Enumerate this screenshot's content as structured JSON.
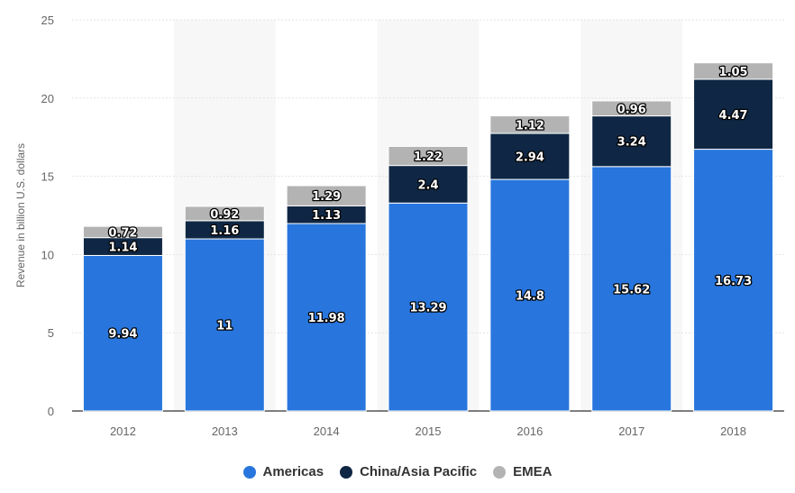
{
  "chart_data": {
    "type": "bar",
    "stacked": true,
    "categories": [
      "2012",
      "2013",
      "2014",
      "2015",
      "2016",
      "2017",
      "2018"
    ],
    "series": [
      {
        "name": "Americas",
        "color": "#2876DD",
        "values": [
          9.94,
          11,
          11.98,
          13.29,
          14.8,
          15.62,
          16.73
        ]
      },
      {
        "name": "China/Asia Pacific",
        "color": "#0F2744",
        "values": [
          1.14,
          1.16,
          1.13,
          2.4,
          2.94,
          3.24,
          4.47
        ]
      },
      {
        "name": "EMEA",
        "color": "#B3B3B3",
        "values": [
          0.72,
          0.92,
          1.29,
          1.22,
          1.12,
          0.96,
          1.05
        ]
      }
    ],
    "ylabel": "Revenue in billion U.S. dollars",
    "xlabel": "",
    "ylim": [
      0,
      25
    ],
    "yticks": [
      0,
      5,
      10,
      15,
      20,
      25
    ],
    "grid": true,
    "legend_position": "bottom-center"
  }
}
